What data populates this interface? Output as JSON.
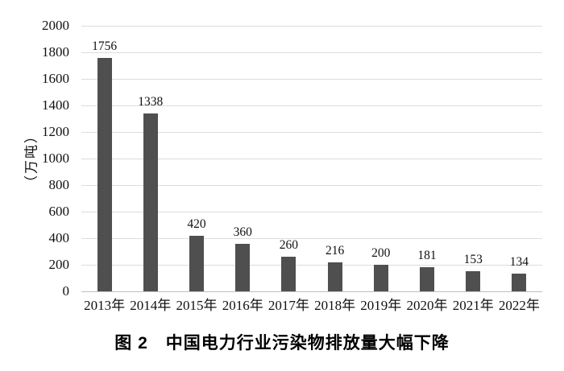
{
  "caption": "图 2　中国电力行业污染物排放量大幅下降",
  "chart_data": {
    "type": "bar",
    "title": "图 2　中国电力行业污染物排放量大幅下降",
    "categories": [
      "2013年",
      "2014年",
      "2015年",
      "2016年",
      "2017年",
      "2018年",
      "2019年",
      "2020年",
      "2021年",
      "2022年"
    ],
    "values": [
      1756,
      1338,
      420,
      360,
      260,
      216,
      200,
      181,
      153,
      134
    ],
    "xlabel": "",
    "ylabel": "（万吨）",
    "ylim": [
      0,
      2000
    ],
    "ytick_step": 200,
    "grid": true,
    "legend_position": "none",
    "bar_color": "#4f4f4f",
    "gridline_color": "#dcdcdc",
    "axisline_color": "#bfbfbf"
  }
}
